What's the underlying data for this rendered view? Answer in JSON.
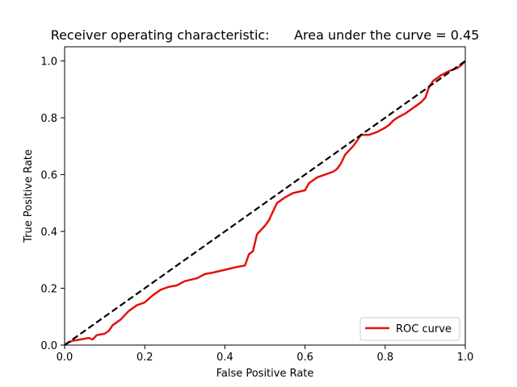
{
  "chart_data": {
    "type": "line",
    "title": "Receiver operating characteristic:      Area under the curve = 0.45",
    "xlabel": "False Positive Rate",
    "ylabel": "True Positive Rate",
    "xlim": [
      0.0,
      1.0
    ],
    "ylim": [
      0.0,
      1.05
    ],
    "xticks": [
      "0.0",
      "0.2",
      "0.4",
      "0.6",
      "0.8",
      "1.0"
    ],
    "yticks": [
      "0.0",
      "0.2",
      "0.4",
      "0.6",
      "0.8",
      "1.0"
    ],
    "grid": false,
    "legend_position": "lower-right",
    "series": [
      {
        "name": "ROC curve",
        "color": "#e3120b",
        "style": "solid",
        "x": [
          0.0,
          0.01,
          0.02,
          0.04,
          0.06,
          0.07,
          0.08,
          0.1,
          0.11,
          0.12,
          0.14,
          0.16,
          0.18,
          0.2,
          0.22,
          0.24,
          0.25,
          0.26,
          0.28,
          0.3,
          0.33,
          0.35,
          0.37,
          0.4,
          0.43,
          0.45,
          0.46,
          0.47,
          0.48,
          0.5,
          0.51,
          0.52,
          0.53,
          0.55,
          0.57,
          0.6,
          0.61,
          0.63,
          0.65,
          0.67,
          0.68,
          0.69,
          0.7,
          0.72,
          0.73,
          0.74,
          0.76,
          0.78,
          0.8,
          0.81,
          0.82,
          0.83,
          0.85,
          0.86,
          0.88,
          0.89,
          0.9,
          0.91,
          0.92,
          0.94,
          0.96,
          0.98,
          0.99,
          1.0
        ],
        "y": [
          0.0,
          0.01,
          0.015,
          0.02,
          0.025,
          0.02,
          0.035,
          0.04,
          0.05,
          0.07,
          0.09,
          0.12,
          0.14,
          0.15,
          0.175,
          0.195,
          0.2,
          0.205,
          0.21,
          0.225,
          0.235,
          0.25,
          0.255,
          0.265,
          0.275,
          0.28,
          0.32,
          0.33,
          0.39,
          0.42,
          0.44,
          0.47,
          0.5,
          0.52,
          0.535,
          0.545,
          0.57,
          0.59,
          0.6,
          0.61,
          0.62,
          0.64,
          0.67,
          0.7,
          0.72,
          0.74,
          0.74,
          0.75,
          0.765,
          0.775,
          0.79,
          0.8,
          0.815,
          0.825,
          0.845,
          0.855,
          0.87,
          0.91,
          0.93,
          0.95,
          0.965,
          0.975,
          0.985,
          1.0
        ]
      },
      {
        "color": "#000000",
        "style": "dashed",
        "x": [
          0.0,
          1.0
        ],
        "y": [
          0.0,
          1.0
        ]
      }
    ]
  }
}
